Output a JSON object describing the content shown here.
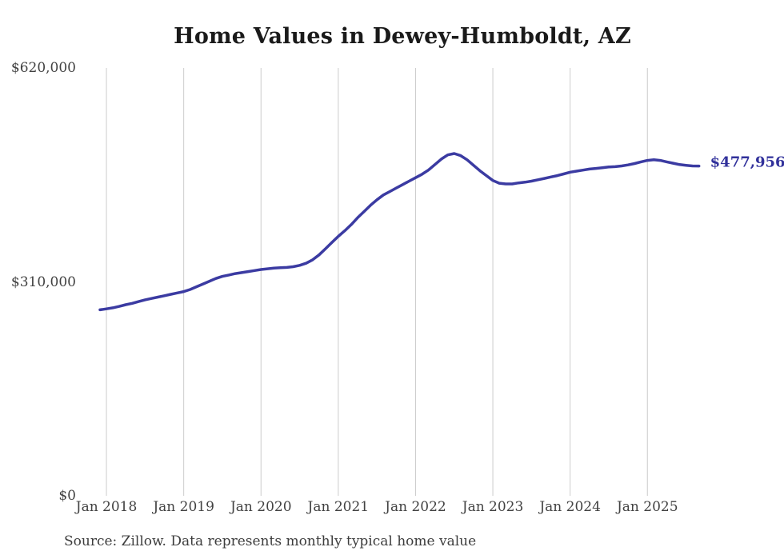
{
  "page": {
    "background": "#ffffff"
  },
  "chart_data": {
    "type": "line",
    "title": "Home Values in Dewey-Humboldt, AZ",
    "source_note": "Source: Zillow. Data represents monthly typical home value",
    "end_label": "$477,956",
    "end_value": 477956,
    "line_color": "#3b3ba2",
    "end_label_color": "#31319b",
    "grid_color": "#cccccc",
    "axis_text_color": "#424242",
    "ylim": [
      0,
      620000
    ],
    "grid": "vertical-only",
    "legend": "none",
    "y_ticks": [
      {
        "value": 620000,
        "label": "$620,000"
      },
      {
        "value": 310000,
        "label": "$310,000"
      },
      {
        "value": 0,
        "label": "$0"
      }
    ],
    "x_tick_labels": [
      "Jan 2018",
      "Jan 2019",
      "Jan 2020",
      "Jan 2021",
      "Jan 2022",
      "Jan 2023",
      "Jan 2024",
      "Jan 2025"
    ],
    "months": [
      "Dec 2017",
      "Jan 2018",
      "Feb 2018",
      "Mar 2018",
      "Apr 2018",
      "May 2018",
      "Jun 2018",
      "Jul 2018",
      "Aug 2018",
      "Sep 2018",
      "Oct 2018",
      "Nov 2018",
      "Dec 2018",
      "Jan 2019",
      "Feb 2019",
      "Mar 2019",
      "Apr 2019",
      "May 2019",
      "Jun 2019",
      "Jul 2019",
      "Aug 2019",
      "Sep 2019",
      "Oct 2019",
      "Nov 2019",
      "Dec 2019",
      "Jan 2020",
      "Feb 2020",
      "Mar 2020",
      "Apr 2020",
      "May 2020",
      "Jun 2020",
      "Jul 2020",
      "Aug 2020",
      "Sep 2020",
      "Oct 2020",
      "Nov 2020",
      "Dec 2020",
      "Jan 2021",
      "Feb 2021",
      "Mar 2021",
      "Apr 2021",
      "May 2021",
      "Jun 2021",
      "Jul 2021",
      "Aug 2021",
      "Sep 2021",
      "Oct 2021",
      "Nov 2021",
      "Dec 2021",
      "Jan 2022",
      "Feb 2022",
      "Mar 2022",
      "Apr 2022",
      "May 2022",
      "Jun 2022",
      "Jul 2022",
      "Aug 2022",
      "Sep 2022",
      "Oct 2022",
      "Nov 2022",
      "Dec 2022",
      "Jan 2023",
      "Feb 2023",
      "Mar 2023",
      "Apr 2023",
      "May 2023",
      "Jun 2023",
      "Jul 2023",
      "Aug 2023",
      "Sep 2023",
      "Oct 2023",
      "Nov 2023",
      "Dec 2023",
      "Jan 2024",
      "Feb 2024",
      "Mar 2024",
      "Apr 2024",
      "May 2024",
      "Jun 2024",
      "Jul 2024",
      "Aug 2024",
      "Sep 2024",
      "Oct 2024",
      "Nov 2024",
      "Dec 2024",
      "Jan 2025",
      "Feb 2025",
      "Mar 2025",
      "Apr 2025",
      "May 2025",
      "Jun 2025",
      "Jul 2025",
      "Aug 2025",
      "Sep 2025"
    ],
    "values": [
      269500,
      271000,
      272500,
      274500,
      277000,
      279000,
      281500,
      284000,
      286000,
      288000,
      290000,
      292000,
      294000,
      296000,
      299000,
      303000,
      307000,
      311000,
      315000,
      318000,
      320000,
      322000,
      323500,
      325000,
      326500,
      328000,
      329000,
      330000,
      330500,
      331000,
      332000,
      334000,
      337000,
      342000,
      349000,
      358000,
      367000,
      376000,
      384000,
      393000,
      403000,
      412000,
      421000,
      429000,
      436000,
      441000,
      446000,
      451000,
      456000,
      461000,
      466000,
      472000,
      480000,
      488000,
      494000,
      496000,
      493000,
      487000,
      479000,
      471000,
      464000,
      457000,
      453000,
      452000,
      452000,
      453500,
      454500,
      456000,
      458000,
      460000,
      462000,
      464000,
      466500,
      469000,
      470500,
      472000,
      473500,
      474500,
      475500,
      476500,
      477000,
      478000,
      479500,
      481500,
      484000,
      486000,
      487000,
      486000,
      484000,
      482000,
      480000,
      479000,
      478000,
      477956
    ]
  }
}
